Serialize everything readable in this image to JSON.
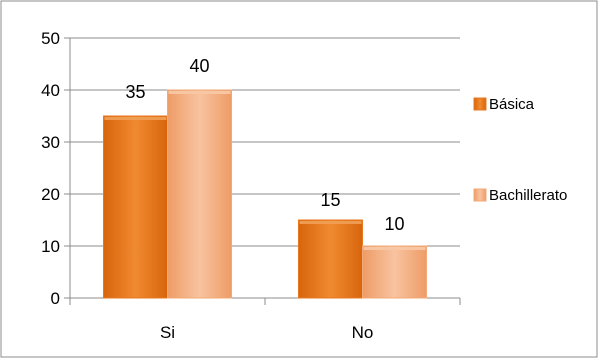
{
  "chart_data": {
    "type": "bar",
    "title": "",
    "xlabel": "",
    "ylabel": "",
    "categories": [
      "Si",
      "No"
    ],
    "series": [
      {
        "name": "Básica",
        "values": [
          35,
          15
        ],
        "color": "#e8781e",
        "color_light": "#f0a058"
      },
      {
        "name": "Bachillerato",
        "values": [
          40,
          10
        ],
        "color": "#f2a877",
        "color_light": "#f7c9a6"
      }
    ],
    "ylim": [
      0,
      50
    ],
    "yticks": [
      0,
      10,
      20,
      30,
      40,
      50
    ],
    "ytick_labels": [
      "0",
      "10",
      "20",
      "30",
      "40",
      "50"
    ],
    "data_labels": [
      [
        "35",
        "15"
      ],
      [
        "40",
        "10"
      ]
    ],
    "grid": true,
    "legend_position": "right"
  }
}
